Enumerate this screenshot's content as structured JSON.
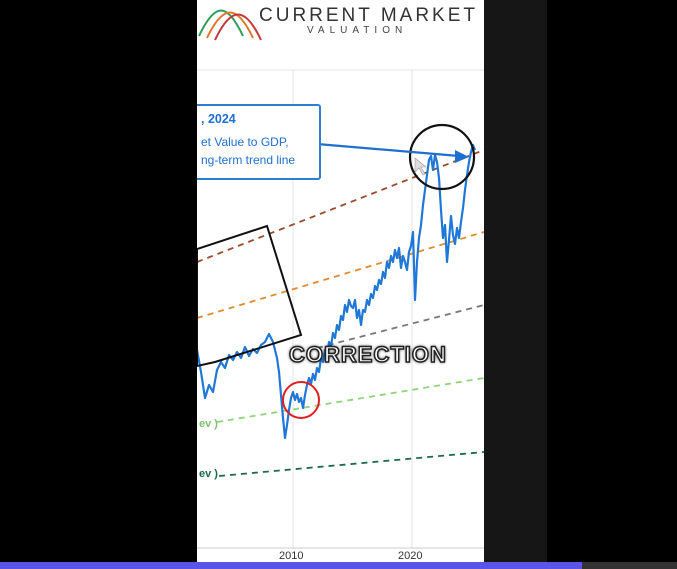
{
  "brand": {
    "title": "CURRENT MARKET",
    "subtitle": "VALUATION"
  },
  "callout": {
    "date": ", 2024",
    "line1": "et Value to GDP,",
    "line2": "ng-term trend line"
  },
  "overlay": {
    "text": "CORRECTION"
  },
  "band_labels": {
    "upper": "ev )",
    "lower": "ev )"
  },
  "chart_data": {
    "type": "line",
    "x_ticks": [
      "2010",
      "2020"
    ],
    "series_color": "#1f78d8",
    "trend_lines": [
      {
        "color": "#9c4a2c"
      },
      {
        "color": "#e08a2c"
      },
      {
        "color": "#777777"
      },
      {
        "color": "#8fd47a"
      },
      {
        "color": "#1b6b48"
      }
    ]
  },
  "colors": {
    "brand_wave_1": "#2e9d5a",
    "brand_wave_2": "#e0792b",
    "brand_wave_3": "#c23a3a",
    "callout": "#1e6fd0",
    "highlight_circle": "#111111",
    "correction_circle": "#e02020",
    "progress": "#5b54e8"
  }
}
